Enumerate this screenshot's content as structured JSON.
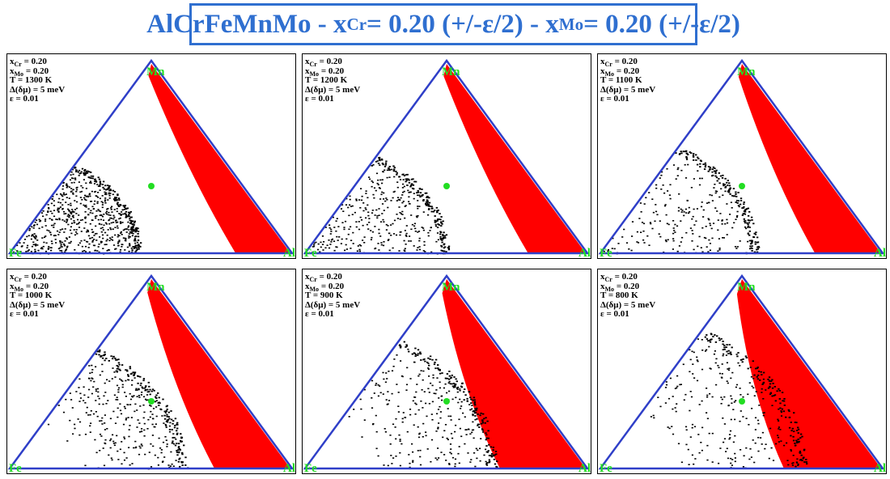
{
  "title": {
    "prefix": "AlCrFeMnMo - x",
    "sub1": "Cr",
    "mid": " = 0.20 (+/-ε/2) - x",
    "sub2": "Mo",
    "suffix": " = 0.20 (+/-ε/2)"
  },
  "colors": {
    "accent": "#2f6fd0",
    "triangle": "#2f3fc8",
    "phase_red": "#ff0000",
    "phase_black": "#000000",
    "composition_point": "#22dd22"
  },
  "vertex_labels": {
    "top": "Mn",
    "left": "Fe",
    "right": "Al"
  },
  "panels": [
    {
      "id": "p1300",
      "xcr": "= 0.20",
      "xmo": "= 0.20",
      "T": "T = 1300 K",
      "dmu": "Δ(δμ) = 5 meV",
      "eps": "ε = 0.01",
      "red_boundary": 0.4,
      "black_extent": 0.62,
      "black_ring": 0.55,
      "black_density": 1.0,
      "sparse_fill": false
    },
    {
      "id": "p1200",
      "xcr": "= 0.20",
      "xmo": "= 0.20",
      "T": "T = 1200 K",
      "dmu": "Δ(δμ) = 5 meV",
      "eps": "ε = 0.01",
      "red_boundary": 0.42,
      "black_extent": 0.7,
      "black_ring": 0.6,
      "black_density": 0.55,
      "sparse_fill": false
    },
    {
      "id": "p1100",
      "xcr": "= 0.20",
      "xmo": "= 0.20",
      "T": "T = 1100 K",
      "dmu": "Δ(δμ) = 5 meV",
      "eps": "ε = 0.01",
      "red_boundary": 0.48,
      "black_extent": 0.72,
      "black_ring": 0.66,
      "black_density": 0.35,
      "sparse_fill": false
    },
    {
      "id": "p1000",
      "xcr": "= 0.20",
      "xmo": "= 0.20",
      "T": "T = 1000 K",
      "dmu": "Δ(δμ) = 5 meV",
      "eps": "ε = 0.01",
      "red_boundary": 0.55,
      "black_extent": 0.78,
      "black_ring": 0.74,
      "black_density": 0.18,
      "sparse_fill": true
    },
    {
      "id": "p900",
      "xcr": "= 0.20",
      "xmo": "= 0.20",
      "T": "T = 900 K",
      "dmu": "Δ(δμ) = 5 meV",
      "eps": "ε = 0.01",
      "red_boundary": 0.62,
      "black_extent": 0.82,
      "black_ring": 0.8,
      "black_density": 0.14,
      "sparse_fill": true
    },
    {
      "id": "p800",
      "xcr": "= 0.20",
      "xmo": "= 0.20",
      "T": "T = 800 K",
      "dmu": "Δ(δμ) = 5 meV",
      "eps": "ε = 0.01",
      "red_boundary": 0.7,
      "black_extent": 0.88,
      "black_ring": 0.86,
      "black_density": 0.1,
      "sparse_fill": true
    }
  ]
}
